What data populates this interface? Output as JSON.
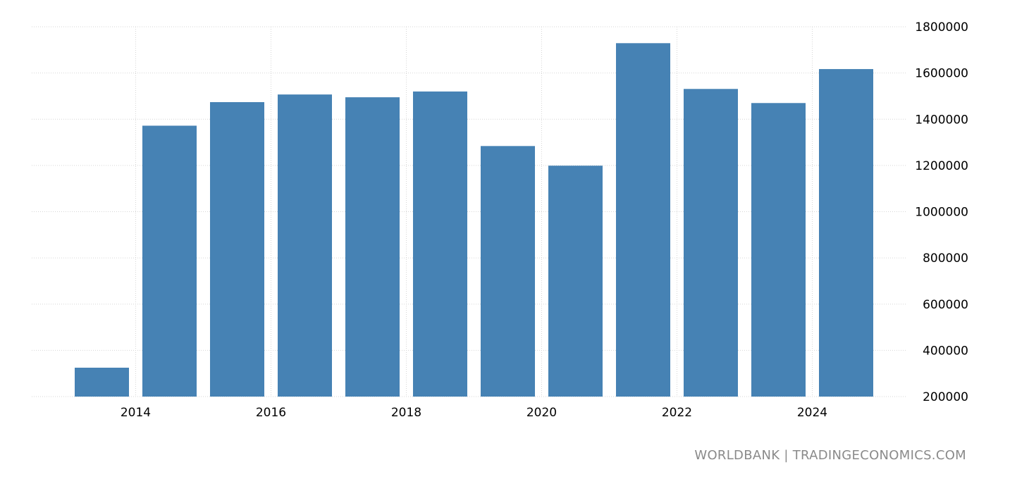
{
  "chart_data": {
    "type": "bar",
    "x": [
      2013,
      2014,
      2015,
      2016,
      2017,
      2018,
      2019,
      2020,
      2021,
      2022,
      2023,
      2024
    ],
    "values": [
      325000,
      1372000,
      1474000,
      1507000,
      1495000,
      1520000,
      1284000,
      1199000,
      1729000,
      1531000,
      1470000,
      1617000
    ],
    "x_tick_labels": [
      "2014",
      "2016",
      "2018",
      "2020",
      "2022",
      "2024"
    ],
    "y_tick_labels": [
      "200000",
      "400000",
      "600000",
      "800000",
      "1000000",
      "1200000",
      "1400000",
      "1600000",
      "1800000"
    ],
    "ylim": [
      200000,
      1800000
    ],
    "y_axis_position": "right",
    "grid": true,
    "bar_color": "#4682b4",
    "source": "WORLDBANK | TRADINGECONOMICS.COM"
  }
}
